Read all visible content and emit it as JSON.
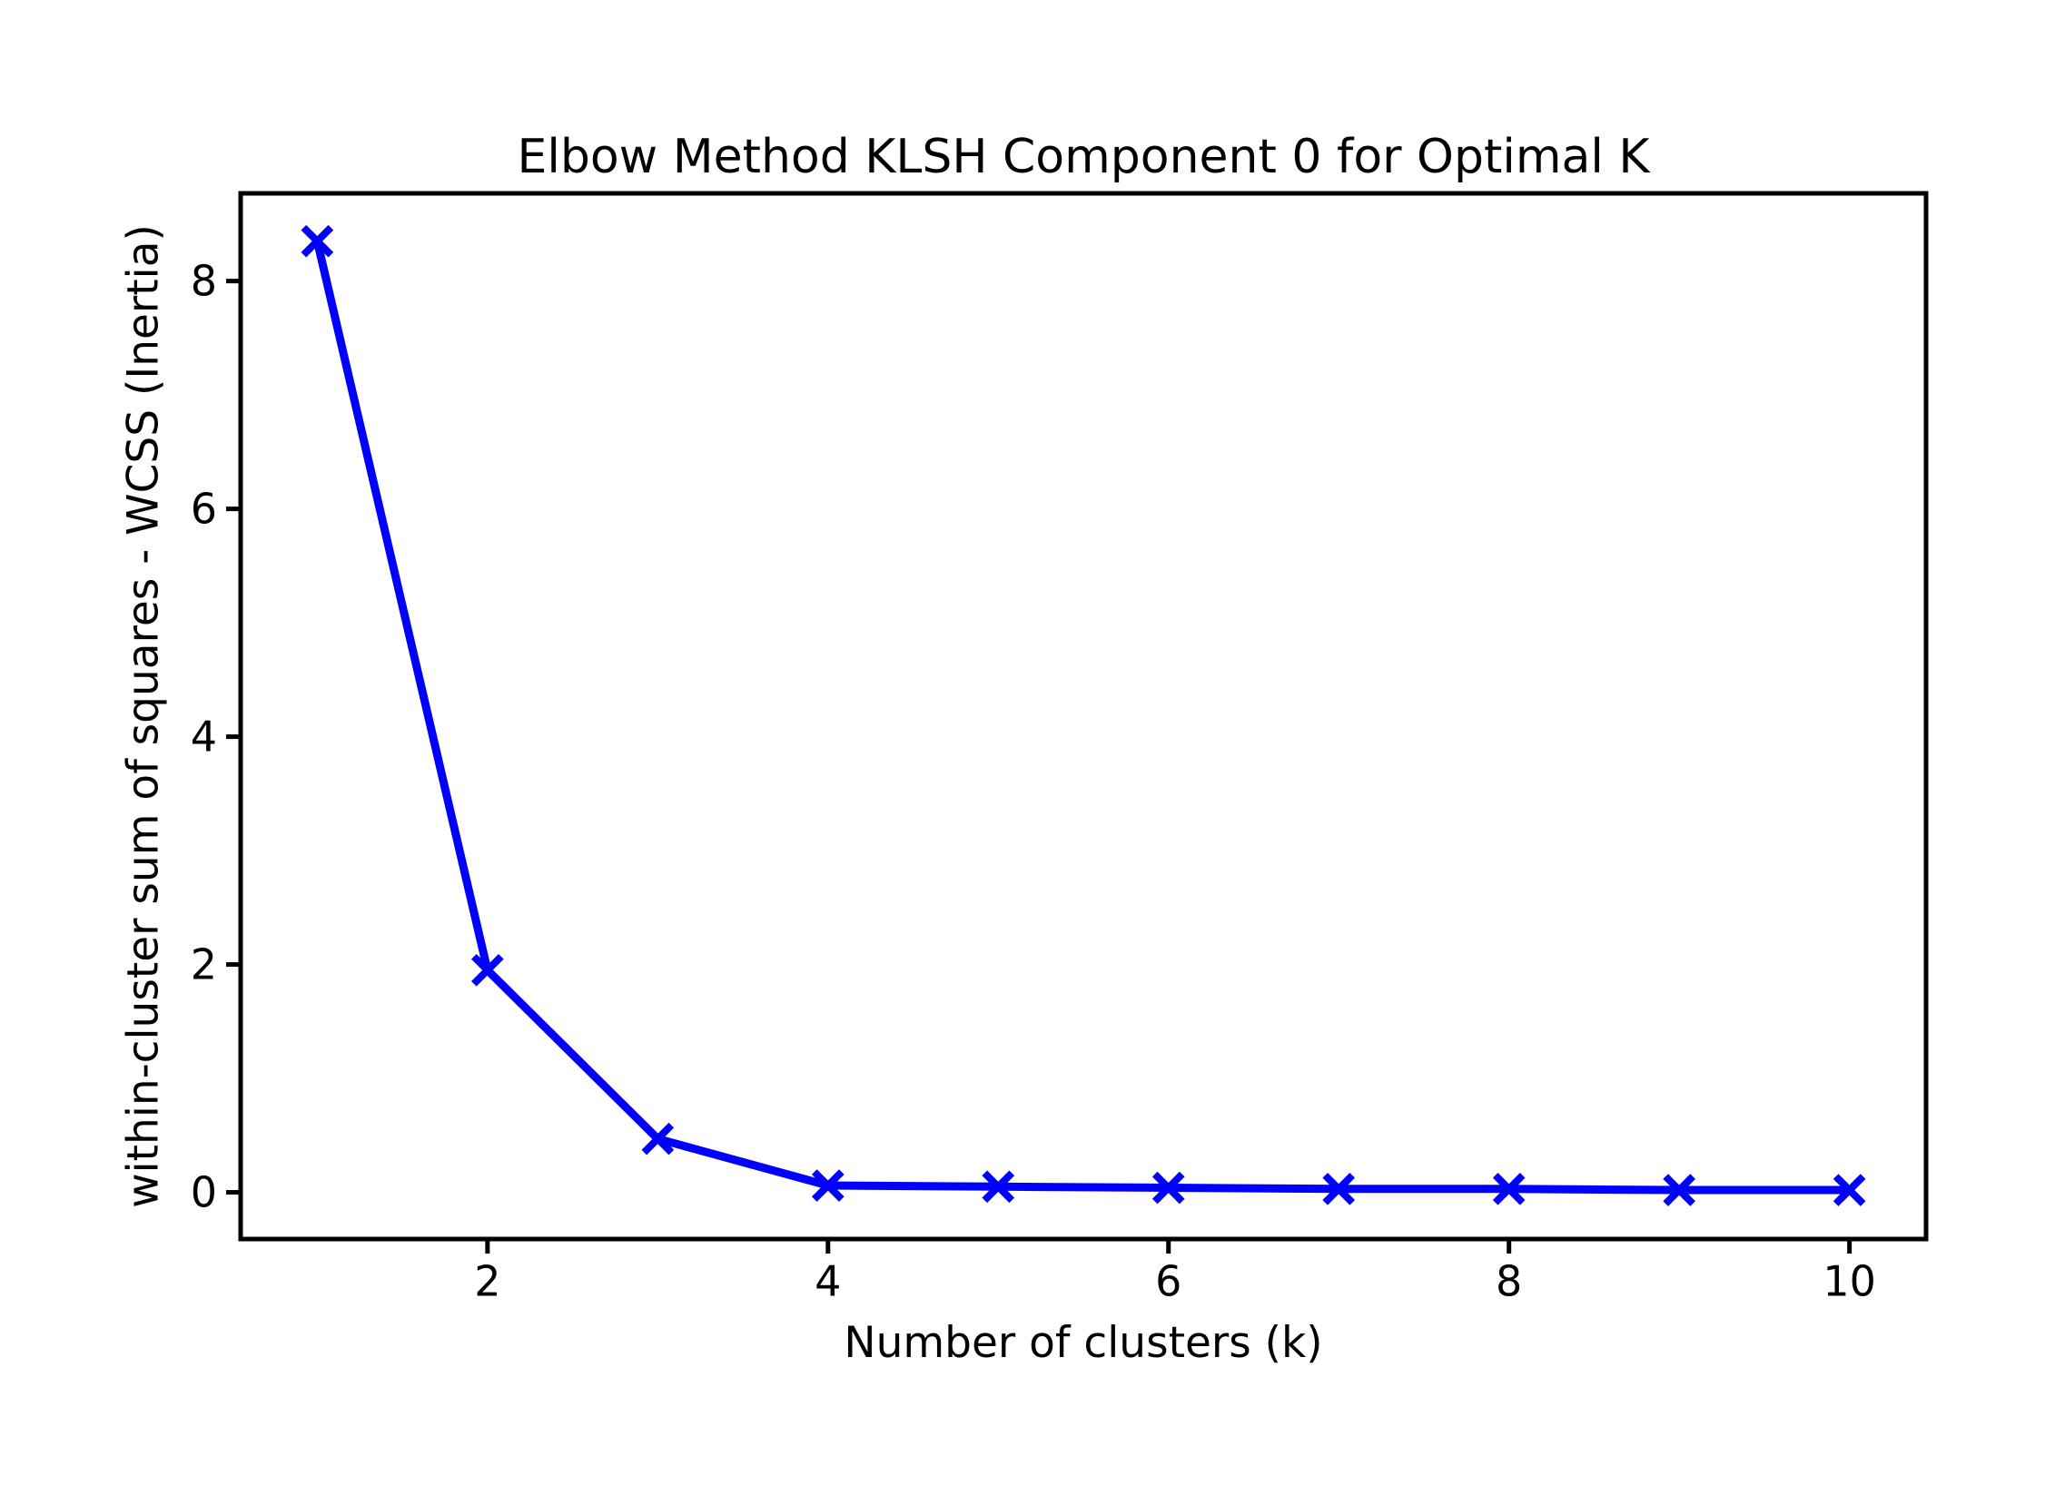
{
  "chart_data": {
    "type": "line",
    "title": "Elbow Method KLSH Component 0 for Optimal K",
    "xlabel": "Number of clusters (k)",
    "ylabel": "within-cluster sum of squares - WCSS (Inertia)",
    "x": [
      1,
      2,
      3,
      4,
      5,
      6,
      7,
      8,
      9,
      10
    ],
    "y": [
      8.35,
      1.95,
      0.47,
      0.06,
      0.05,
      0.04,
      0.03,
      0.03,
      0.02,
      0.02
    ],
    "xlim": [
      0.55,
      10.45
    ],
    "ylim": [
      -0.41,
      8.77
    ],
    "xticks": [
      2,
      4,
      6,
      8,
      10
    ],
    "yticks": [
      0,
      2,
      4,
      6,
      8
    ],
    "xtick_labels": [
      "2",
      "4",
      "6",
      "8",
      "10"
    ],
    "ytick_labels": [
      "0",
      "2",
      "4",
      "6",
      "8"
    ],
    "line_color": "#0000ff",
    "marker": "x",
    "axis_color": "#000000",
    "background_color": "#ffffff",
    "grid": false,
    "legend": null
  }
}
